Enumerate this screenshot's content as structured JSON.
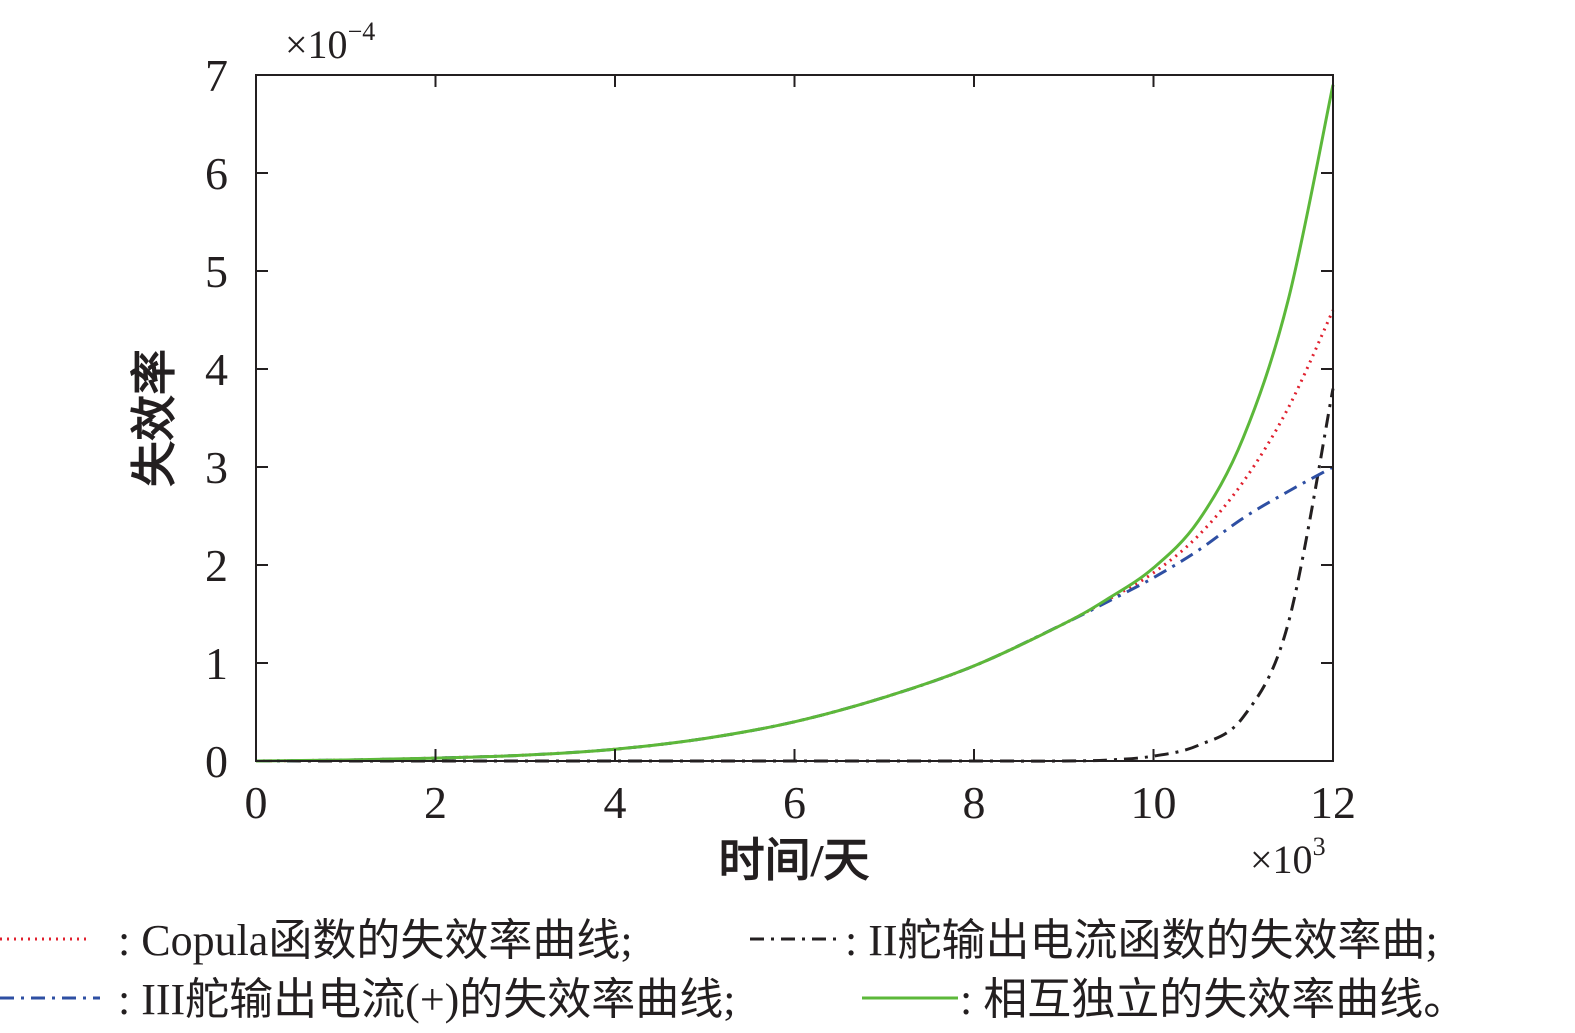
{
  "chart_data": {
    "type": "line",
    "xlabel": "时间/天",
    "ylabel": "失效率",
    "x_multiplier": "×10",
    "x_multiplier_exp": "3",
    "y_multiplier": "×10",
    "y_multiplier_exp": "−4",
    "xlim": [
      0,
      12
    ],
    "ylim": [
      0,
      7
    ],
    "xticks": [
      "0",
      "2",
      "4",
      "6",
      "8",
      "10",
      "12"
    ],
    "yticks": [
      "0",
      "1",
      "2",
      "3",
      "4",
      "5",
      "6",
      "7"
    ],
    "grid": false,
    "legend_position": "bottom",
    "x": [
      0,
      1,
      2,
      3,
      4,
      5,
      6,
      7,
      8,
      9,
      9.5,
      10,
      10.5,
      11,
      11.5,
      12
    ],
    "series": [
      {
        "name": "Copula函数的失效率曲线",
        "color": "#e0202e",
        "style": "dotted",
        "values": [
          0,
          0.01,
          0.03,
          0.06,
          0.12,
          0.23,
          0.4,
          0.65,
          0.97,
          1.4,
          1.65,
          1.92,
          2.3,
          2.85,
          3.6,
          4.6
        ]
      },
      {
        "name": "II舵输出电流函数的失效率曲",
        "color": "#231f20",
        "style": "dashdot",
        "values": [
          0,
          0,
          0,
          0,
          0,
          0,
          0,
          0,
          0,
          0,
          0.01,
          0.05,
          0.16,
          0.45,
          1.4,
          3.8
        ]
      },
      {
        "name": "III舵输出电流(+)的失效率曲线",
        "color": "#2e4fa3",
        "style": "dashdot",
        "values": [
          0,
          0.01,
          0.03,
          0.06,
          0.12,
          0.23,
          0.4,
          0.65,
          0.97,
          1.4,
          1.63,
          1.87,
          2.15,
          2.48,
          2.75,
          3.0
        ]
      },
      {
        "name": "相互独立的失效率曲线",
        "color": "#5cb83a",
        "style": "solid",
        "values": [
          0,
          0.01,
          0.03,
          0.06,
          0.12,
          0.23,
          0.4,
          0.65,
          0.97,
          1.4,
          1.66,
          1.97,
          2.45,
          3.3,
          4.7,
          6.9
        ]
      }
    ]
  },
  "legend": {
    "row1_item1": ": Copula函数的失效率曲线;",
    "row1_item2": ": II舵输出电流函数的失效率曲;",
    "row2_item1": ": III舵输出电流(+)的失效率曲线;",
    "row2_item2": ": 相互独立的失效率曲线。"
  }
}
